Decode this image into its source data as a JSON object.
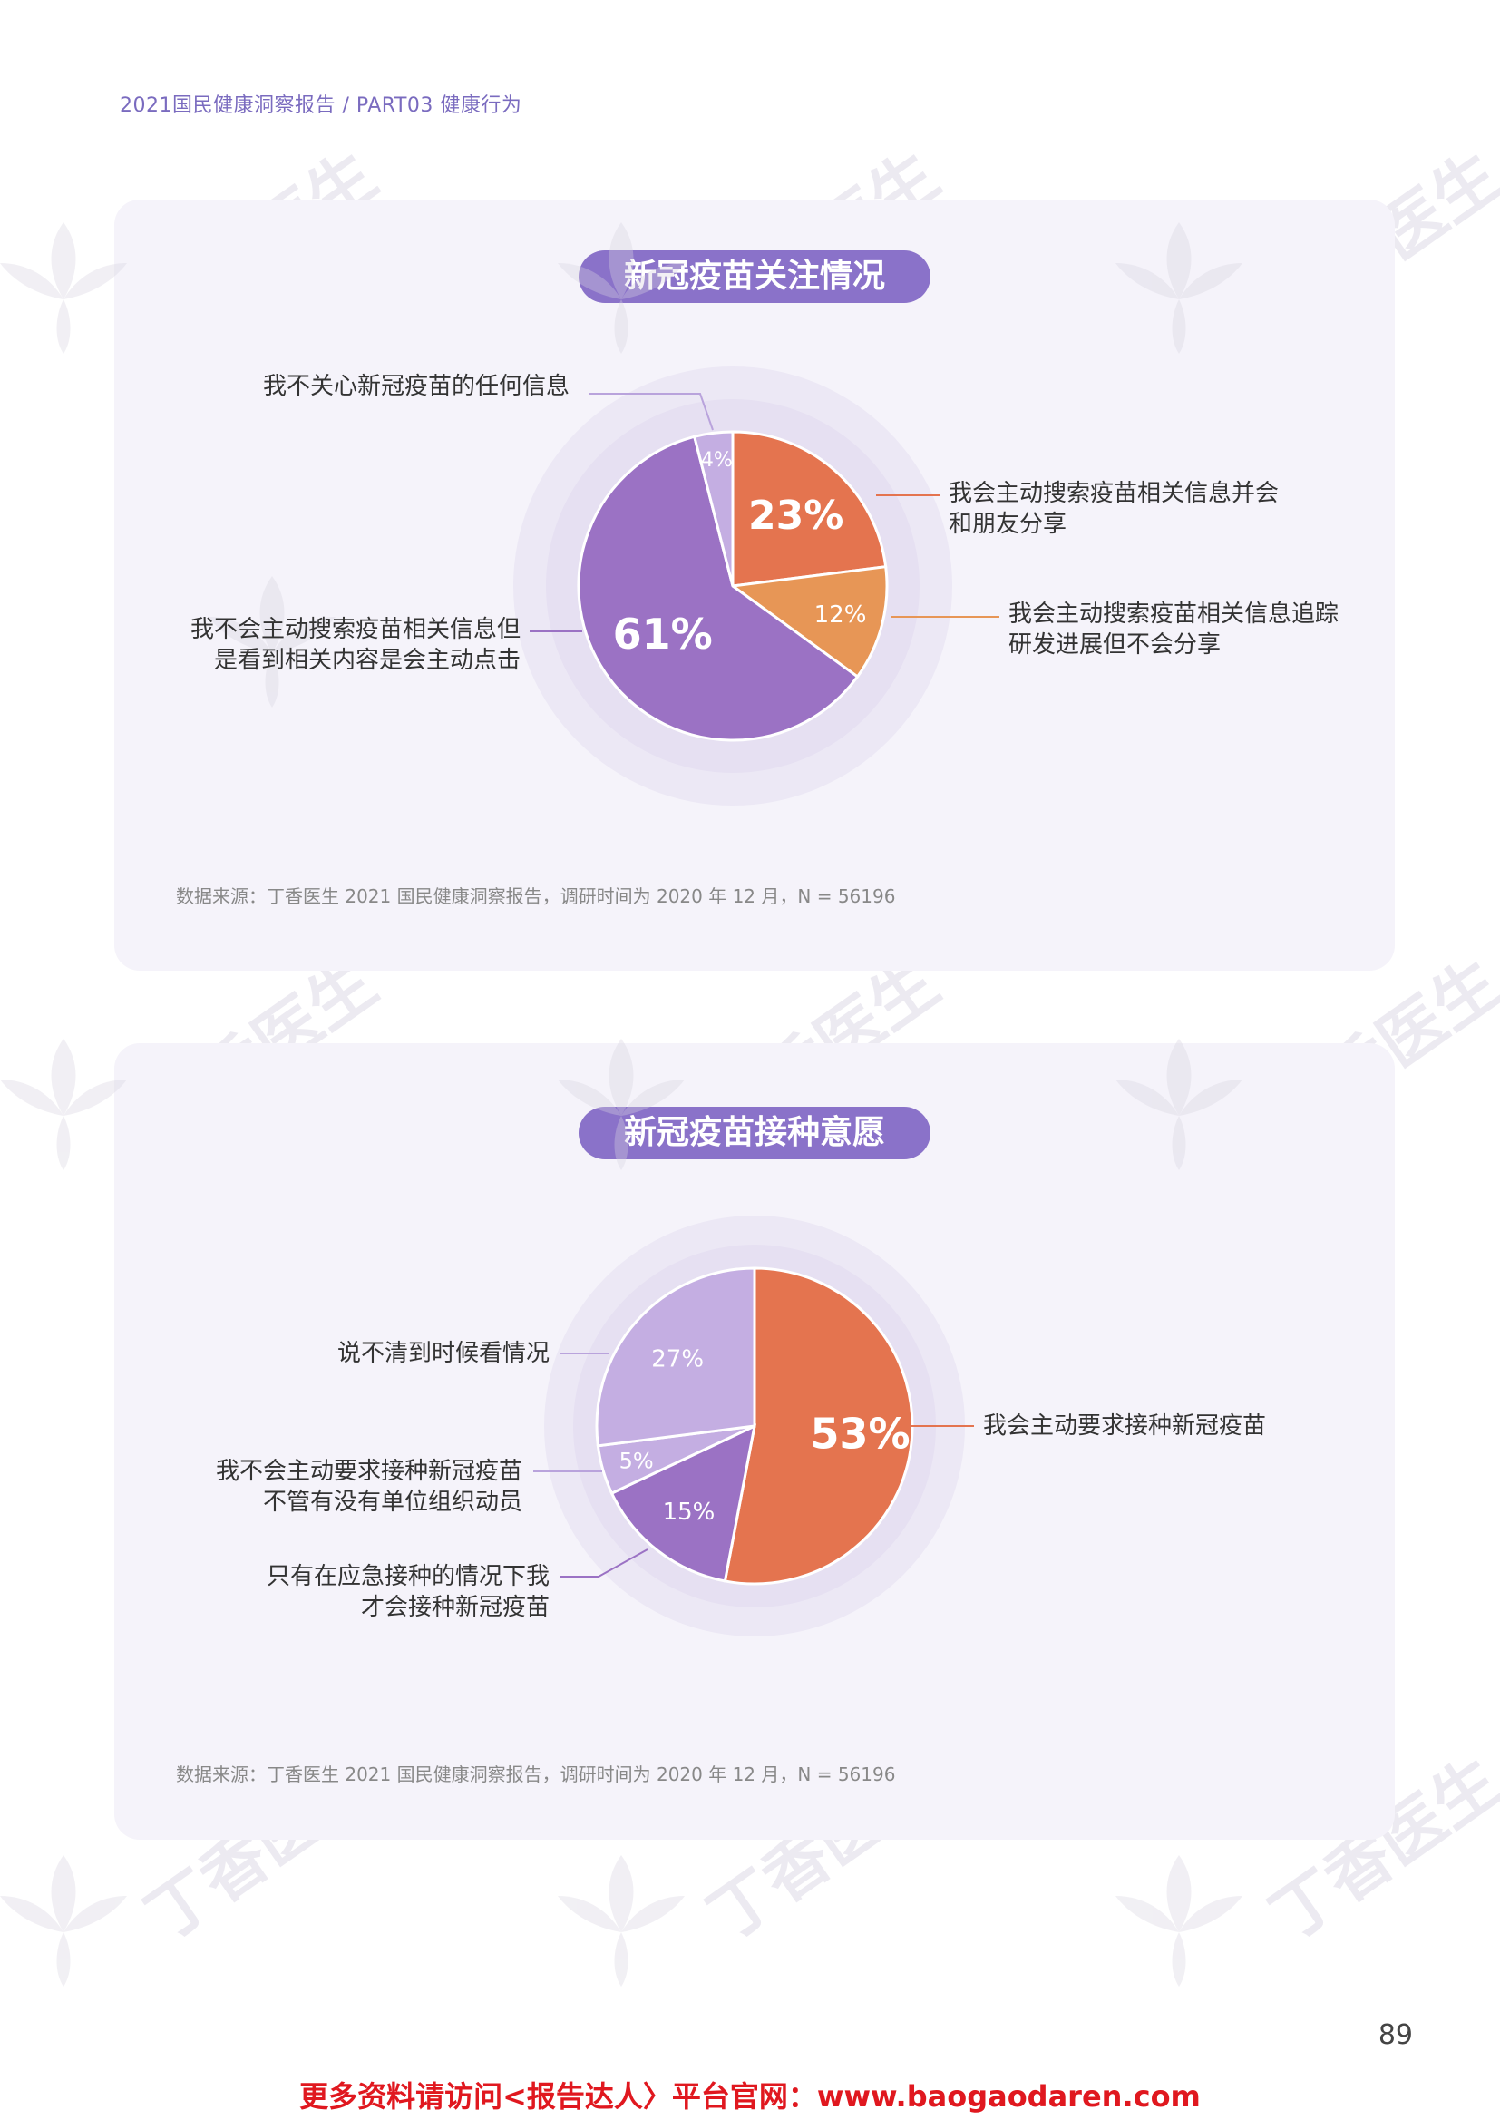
{
  "header": "2021国民健康洞察报告 / PART03 健康行为",
  "watermark_text": "丁香医生",
  "charts": [
    {
      "title": "新冠疫苗关注情况",
      "source": "数据来源：丁香医生 2021 国民健康洞察报告，调研时间为 2020 年 12 月，N = 56196"
    },
    {
      "title": "新冠疫苗接种意愿",
      "source": "数据来源：丁香医生 2021 国民健康洞察报告，调研时间为 2020 年 12 月，N = 56196"
    }
  ],
  "chart_data": [
    {
      "type": "pie",
      "title": "新冠疫苗关注情况",
      "slices": [
        {
          "label": "我会主动搜索疫苗相关信息并会和朋友分享",
          "value": 23,
          "display": "23%",
          "color": "#e4744f"
        },
        {
          "label": "我会主动搜索疫苗相关信息追踪研发进展但不会分享",
          "value": 12,
          "display": "12%",
          "color": "#e79656"
        },
        {
          "label": "我不会主动搜索疫苗相关信息但是看到相关内容是会主动点击",
          "value": 61,
          "display": "61%",
          "color": "#9b72c4"
        },
        {
          "label": "我不关心新冠疫苗的任何信息",
          "value": 4,
          "display": "4%",
          "color": "#c4aee2"
        }
      ]
    },
    {
      "type": "pie",
      "title": "新冠疫苗接种意愿",
      "slices": [
        {
          "label": "我会主动要求接种新冠疫苗",
          "value": 53,
          "display": "53%",
          "color": "#e4744f"
        },
        {
          "label": "只有在应急接种的情况下我才会接种新冠疫苗",
          "value": 15,
          "display": "15%",
          "color": "#9b72c4"
        },
        {
          "label": "我不会主动要求接种新冠疫苗不管有没有单位组织动员",
          "value": 5,
          "display": "5%",
          "color": "#c4aee2"
        },
        {
          "label": "说不清到时候看情况",
          "value": 27,
          "display": "27%",
          "color": "#c4aee2"
        }
      ]
    }
  ],
  "page_number": "89",
  "footer": "更多资料请访问<报告达人〉平台官网：www.baogaodaren.com"
}
